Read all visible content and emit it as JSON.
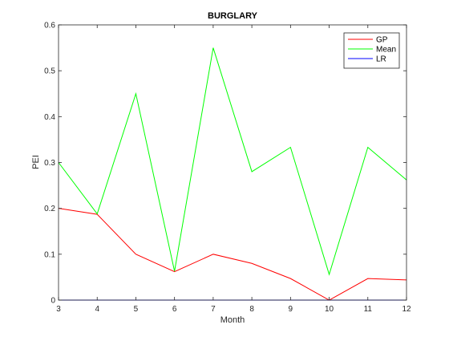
{
  "chart_data": {
    "type": "line",
    "title": "BURGLARY",
    "xlabel": "Month",
    "ylabel": "PEI",
    "x": [
      3,
      4,
      5,
      6,
      7,
      8,
      9,
      10,
      11,
      12
    ],
    "xlim": [
      3,
      12
    ],
    "ylim": [
      0,
      0.6
    ],
    "xticks": [
      "3",
      "4",
      "5",
      "6",
      "7",
      "8",
      "9",
      "10",
      "11",
      "12"
    ],
    "yticks": [
      "0",
      "0.1",
      "0.2",
      "0.3",
      "0.4",
      "0.5",
      "0.6"
    ],
    "grid": false,
    "legend_position": "top-right",
    "series": [
      {
        "name": "GP",
        "color": "#ff0000",
        "values": [
          0.2,
          0.187,
          0.1,
          0.062,
          0.1,
          0.08,
          0.047,
          0.0,
          0.047,
          0.044
        ]
      },
      {
        "name": "Mean",
        "color": "#00ff00",
        "values": [
          0.3,
          0.188,
          0.45,
          0.063,
          0.55,
          0.28,
          0.333,
          0.056,
          0.333,
          0.262
        ]
      },
      {
        "name": "LR",
        "color": "#0000ff",
        "values": [
          0.0,
          0.0,
          0.0,
          0.0,
          0.0,
          0.0,
          0.0,
          0.0,
          0.0,
          0.0
        ]
      }
    ]
  }
}
